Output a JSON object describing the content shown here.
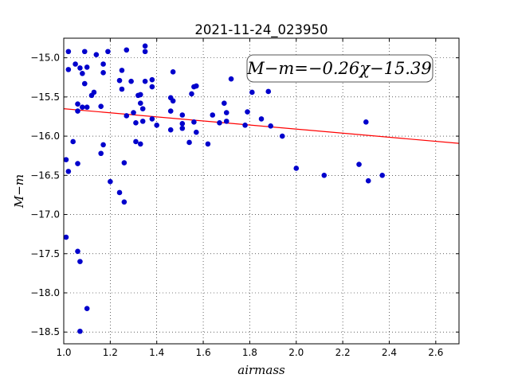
{
  "chart_data": {
    "type": "scatter",
    "title": "2021-11-24_023950",
    "xlabel": "airmass",
    "ylabel": "M−m",
    "xlim": [
      1.0,
      2.7
    ],
    "ylim": [
      -18.65,
      -14.75
    ],
    "y_inverted": true,
    "grid": true,
    "x_ticks": [
      1.0,
      1.2,
      1.4,
      1.6,
      1.8,
      2.0,
      2.2,
      2.4,
      2.6
    ],
    "x_tick_labels": [
      "1.0",
      "1.2",
      "1.4",
      "1.6",
      "1.8",
      "2.0",
      "2.2",
      "2.4",
      "2.6"
    ],
    "y_ticks": [
      -15.0,
      -15.5,
      -16.0,
      -16.5,
      -17.0,
      -17.5,
      -18.0,
      -18.5
    ],
    "y_tick_labels": [
      "−15.0",
      "−15.5",
      "−16.0",
      "−16.5",
      "−17.0",
      "−17.5",
      "−18.0",
      "−18.5"
    ],
    "annotation": "M−m=−0.26χ−15.39",
    "fit": {
      "slope": -0.26,
      "intercept": -15.39,
      "color": "#ff0000"
    },
    "point_color": "#0000cc",
    "points": [
      [
        1.02,
        -14.92
      ],
      [
        1.02,
        -15.15
      ],
      [
        1.05,
        -15.08
      ],
      [
        1.06,
        -15.59
      ],
      [
        1.07,
        -15.13
      ],
      [
        1.08,
        -15.2
      ],
      [
        1.09,
        -14.92
      ],
      [
        1.1,
        -15.12
      ],
      [
        1.09,
        -15.33
      ],
      [
        1.06,
        -15.68
      ],
      [
        1.08,
        -15.63
      ],
      [
        1.1,
        -15.63
      ],
      [
        1.12,
        -15.48
      ],
      [
        1.13,
        -15.44
      ],
      [
        1.14,
        -14.96
      ],
      [
        1.16,
        -15.62
      ],
      [
        1.17,
        -15.08
      ],
      [
        1.17,
        -15.19
      ],
      [
        1.19,
        -14.92
      ],
      [
        1.04,
        -16.07
      ],
      [
        1.01,
        -16.3
      ],
      [
        1.02,
        -16.45
      ],
      [
        1.06,
        -16.35
      ],
      [
        1.16,
        -16.22
      ],
      [
        1.17,
        -16.11
      ],
      [
        1.01,
        -17.29
      ],
      [
        1.06,
        -17.47
      ],
      [
        1.07,
        -17.6
      ],
      [
        1.1,
        -18.2
      ],
      [
        1.07,
        -18.49
      ],
      [
        1.2,
        -16.58
      ],
      [
        1.24,
        -16.72
      ],
      [
        1.26,
        -16.84
      ],
      [
        1.26,
        -16.34
      ],
      [
        1.24,
        -15.29
      ],
      [
        1.25,
        -15.16
      ],
      [
        1.25,
        -15.4
      ],
      [
        1.27,
        -14.9
      ],
      [
        1.29,
        -15.3
      ],
      [
        1.27,
        -15.74
      ],
      [
        1.3,
        -15.7
      ],
      [
        1.31,
        -16.07
      ],
      [
        1.31,
        -15.83
      ],
      [
        1.32,
        -15.48
      ],
      [
        1.33,
        -15.47
      ],
      [
        1.33,
        -15.58
      ],
      [
        1.34,
        -15.65
      ],
      [
        1.34,
        -15.81
      ],
      [
        1.33,
        -16.1
      ],
      [
        1.35,
        -14.85
      ],
      [
        1.35,
        -14.92
      ],
      [
        1.35,
        -15.3
      ],
      [
        1.38,
        -15.28
      ],
      [
        1.38,
        -15.37
      ],
      [
        1.38,
        -15.78
      ],
      [
        1.4,
        -15.86
      ],
      [
        1.46,
        -15.68
      ],
      [
        1.46,
        -15.51
      ],
      [
        1.47,
        -15.55
      ],
      [
        1.47,
        -15.18
      ],
      [
        1.46,
        -15.92
      ],
      [
        1.51,
        -15.73
      ],
      [
        1.51,
        -15.84
      ],
      [
        1.51,
        -15.9
      ],
      [
        1.54,
        -16.08
      ],
      [
        1.55,
        -15.46
      ],
      [
        1.56,
        -15.37
      ],
      [
        1.57,
        -15.36
      ],
      [
        1.56,
        -15.82
      ],
      [
        1.57,
        -15.95
      ],
      [
        1.62,
        -16.1
      ],
      [
        1.64,
        -15.73
      ],
      [
        1.67,
        -15.83
      ],
      [
        1.69,
        -15.58
      ],
      [
        1.7,
        -15.7
      ],
      [
        1.7,
        -15.81
      ],
      [
        1.72,
        -15.27
      ],
      [
        1.78,
        -15.86
      ],
      [
        1.79,
        -15.69
      ],
      [
        1.81,
        -15.44
      ],
      [
        1.85,
        -15.78
      ],
      [
        1.88,
        -15.43
      ],
      [
        1.89,
        -15.87
      ],
      [
        1.94,
        -16.0
      ],
      [
        2.0,
        -16.41
      ],
      [
        2.12,
        -16.5
      ],
      [
        2.27,
        -16.36
      ],
      [
        2.3,
        -15.82
      ],
      [
        2.31,
        -16.57
      ],
      [
        2.37,
        -16.5
      ]
    ]
  }
}
